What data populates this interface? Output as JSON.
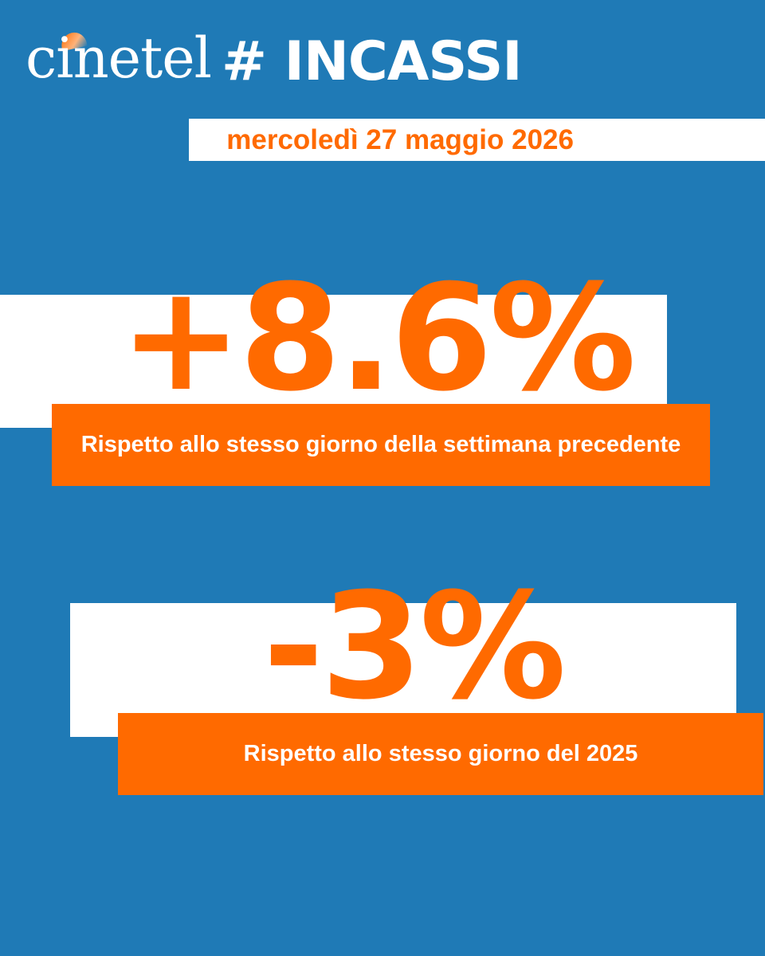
{
  "header": {
    "brand": "cinetel",
    "hashtag": "# INCASSI"
  },
  "date": "mercoledì 27 maggio 2026",
  "stats": [
    {
      "value": "+8.6%",
      "caption": "Rispetto allo stesso giorno della settimana precedente"
    },
    {
      "value": "-3%",
      "caption": "Rispetto allo stesso giorno del 2025"
    }
  ],
  "colors": {
    "background": "#1f7ab6",
    "accent": "#ff6a00",
    "panel": "#ffffff"
  }
}
